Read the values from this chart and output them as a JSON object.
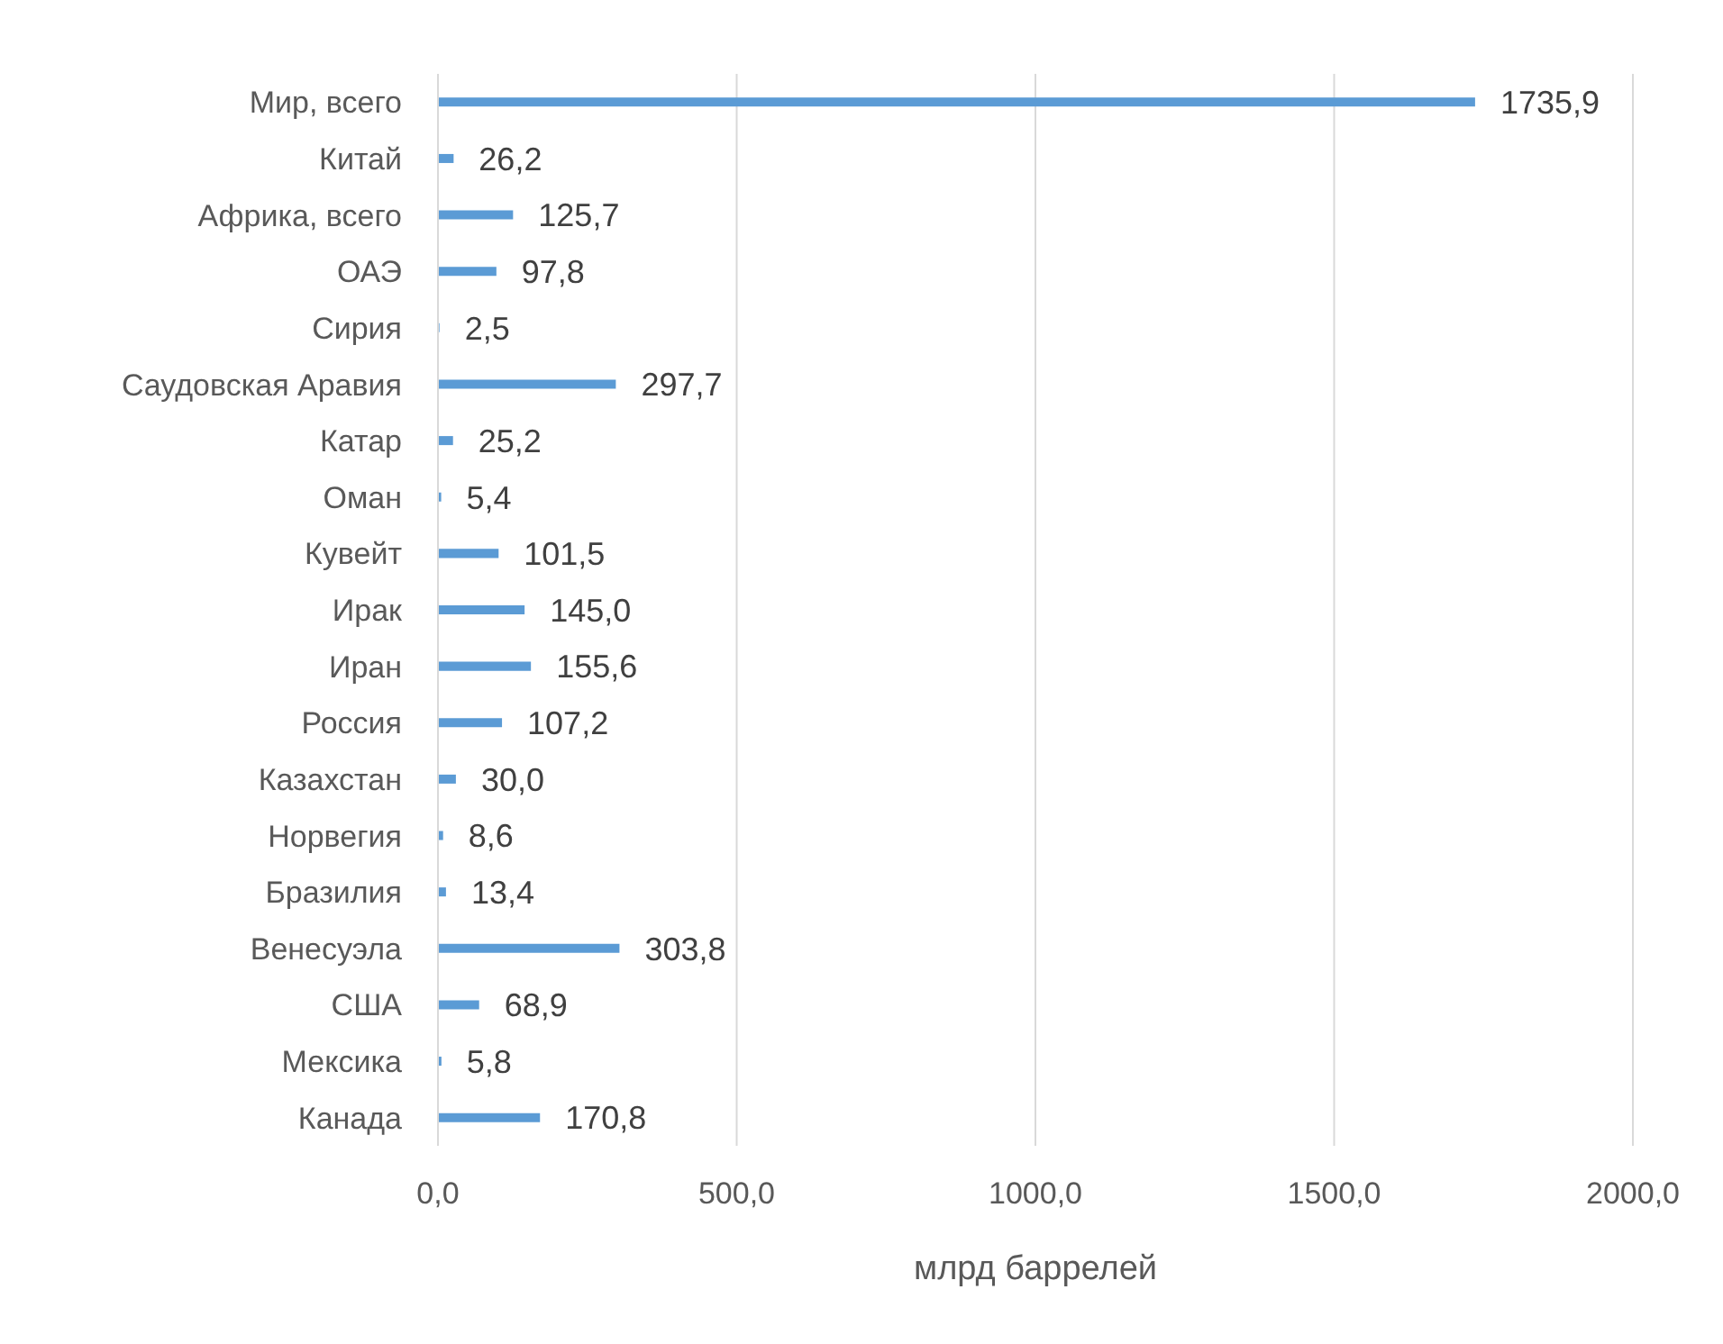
{
  "chart_data": {
    "type": "bar",
    "orientation": "horizontal",
    "xlabel": "млрд баррелей",
    "categories": [
      "Мир, всего",
      "Китай",
      "Африка, всего",
      "ОАЭ",
      "Сирия",
      "Саудовская Аравия",
      "Катар",
      "Оман",
      "Кувейт",
      "Ирак",
      "Иран",
      "Россия",
      "Казахстан",
      "Норвегия",
      "Бразилия",
      "Венесуэла",
      "США",
      "Мексика",
      "Канада"
    ],
    "values": [
      1735.9,
      26.2,
      125.7,
      97.8,
      2.5,
      297.7,
      25.2,
      5.4,
      101.5,
      145.0,
      155.6,
      107.2,
      30.0,
      8.6,
      13.4,
      303.8,
      68.9,
      5.8,
      170.8
    ],
    "value_labels": [
      "1735,9",
      "26,2",
      "125,7",
      "97,8",
      "2,5",
      "297,7",
      "25,2",
      "5,4",
      "101,5",
      "145,0",
      "155,6",
      "107,2",
      "30,0",
      "8,6",
      "13,4",
      "303,8",
      "68,9",
      "5,8",
      "170,8"
    ],
    "color": "#5b9bd5",
    "xlim": [
      0,
      2000
    ],
    "xticks": [
      {
        "value": 0,
        "label": "0,0"
      },
      {
        "value": 500,
        "label": "500,0"
      },
      {
        "value": 1000,
        "label": "1000,0"
      },
      {
        "value": 1500,
        "label": "1500,0"
      },
      {
        "value": 2000,
        "label": "2000,0"
      }
    ],
    "grid": "x"
  }
}
